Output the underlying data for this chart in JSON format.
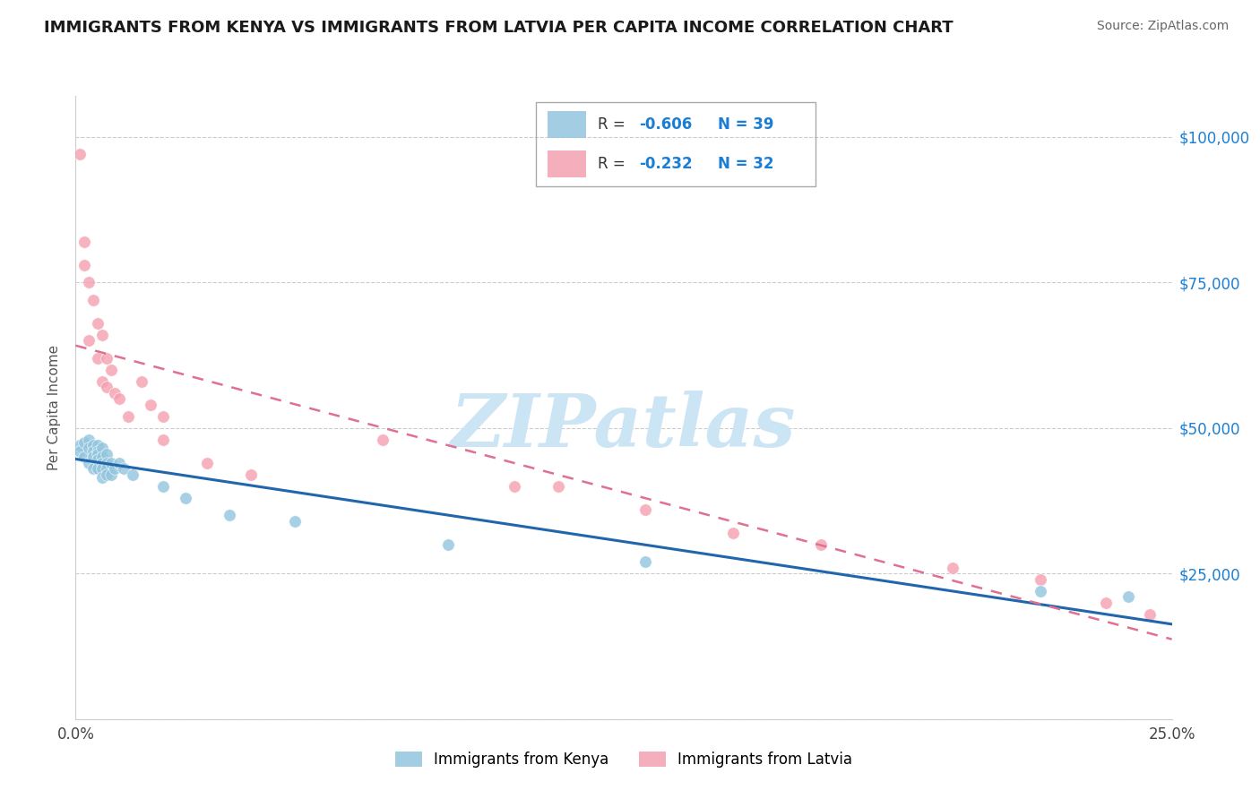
{
  "title": "IMMIGRANTS FROM KENYA VS IMMIGRANTS FROM LATVIA PER CAPITA INCOME CORRELATION CHART",
  "source": "Source: ZipAtlas.com",
  "ylabel": "Per Capita Income",
  "xlim": [
    0.0,
    0.25
  ],
  "ylim": [
    0,
    107000
  ],
  "ytick_vals": [
    0,
    25000,
    50000,
    75000,
    100000
  ],
  "ytick_labels": [
    "",
    "$25,000",
    "$50,000",
    "$75,000",
    "$100,000"
  ],
  "xtick_vals": [
    0.0,
    0.25
  ],
  "xtick_labels": [
    "0.0%",
    "25.0%"
  ],
  "kenya_R": -0.606,
  "kenya_N": 39,
  "latvia_R": -0.232,
  "latvia_N": 32,
  "kenya_color": "#92c5de",
  "latvia_color": "#f4a0b0",
  "kenya_line_color": "#2166ac",
  "latvia_line_color": "#e07090",
  "watermark_text": "ZIPatlas",
  "watermark_color": "#cce5f5",
  "grid_color": "#cccccc",
  "title_color": "#1a1a1a",
  "source_color": "#666666",
  "right_ytick_color": "#1a7fd4",
  "kenya_x": [
    0.001,
    0.001,
    0.002,
    0.002,
    0.003,
    0.003,
    0.003,
    0.004,
    0.004,
    0.004,
    0.004,
    0.005,
    0.005,
    0.005,
    0.005,
    0.005,
    0.006,
    0.006,
    0.006,
    0.006,
    0.006,
    0.007,
    0.007,
    0.007,
    0.007,
    0.008,
    0.008,
    0.009,
    0.01,
    0.011,
    0.013,
    0.02,
    0.025,
    0.035,
    0.05,
    0.085,
    0.13,
    0.22,
    0.24
  ],
  "kenya_y": [
    47000,
    46000,
    47500,
    45000,
    48000,
    46500,
    44000,
    47000,
    46000,
    45000,
    43000,
    47000,
    46000,
    45500,
    44500,
    43000,
    46500,
    45000,
    44000,
    43000,
    41500,
    45500,
    44000,
    43000,
    42000,
    44000,
    42000,
    43000,
    44000,
    43000,
    42000,
    40000,
    38000,
    35000,
    34000,
    30000,
    27000,
    22000,
    21000
  ],
  "latvia_x": [
    0.001,
    0.002,
    0.002,
    0.003,
    0.003,
    0.004,
    0.005,
    0.005,
    0.006,
    0.006,
    0.007,
    0.007,
    0.008,
    0.009,
    0.01,
    0.012,
    0.015,
    0.017,
    0.02,
    0.02,
    0.03,
    0.04,
    0.07,
    0.1,
    0.11,
    0.13,
    0.15,
    0.17,
    0.2,
    0.22,
    0.235,
    0.245
  ],
  "latvia_y": [
    97000,
    82000,
    78000,
    75000,
    65000,
    72000,
    68000,
    62000,
    66000,
    58000,
    62000,
    57000,
    60000,
    56000,
    55000,
    52000,
    58000,
    54000,
    52000,
    48000,
    44000,
    42000,
    48000,
    40000,
    40000,
    36000,
    32000,
    30000,
    26000,
    24000,
    20000,
    18000
  ]
}
